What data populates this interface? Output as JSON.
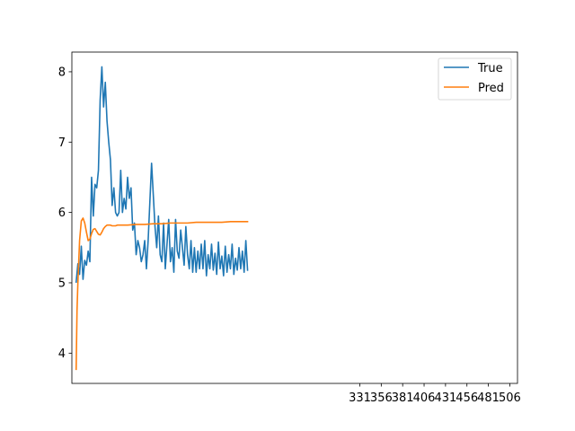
{
  "chart_data": {
    "type": "line",
    "title": "",
    "xlabel": "",
    "ylabel": "",
    "xlim": [
      -5,
      515
    ],
    "ylim": [
      3.57,
      8.28
    ],
    "grid": false,
    "legend_position": "top-right",
    "x_ticks": [
      331,
      356,
      381,
      406,
      431,
      456,
      481,
      506
    ],
    "x_tick_labels": [
      "331",
      "356",
      "381",
      "406",
      "431",
      "456",
      "481",
      "506"
    ],
    "y_ticks": [
      4,
      5,
      6,
      7,
      8
    ],
    "y_tick_labels": [
      "4",
      "5",
      "6",
      "7",
      "8"
    ],
    "series": [
      {
        "name": "True",
        "color": "#1f77b4",
        "x": [
          0,
          2,
          4,
          6,
          8,
          10,
          12,
          14,
          16,
          18,
          20,
          22,
          24,
          26,
          28,
          30,
          32,
          34,
          36,
          38,
          40,
          42,
          44,
          46,
          48,
          50,
          52,
          54,
          56,
          58,
          60,
          62,
          64,
          66,
          68,
          70,
          72,
          74,
          76,
          78,
          80,
          82,
          84,
          86,
          88,
          90,
          92,
          94,
          96,
          98,
          100,
          102,
          104,
          106,
          108,
          110,
          112,
          114,
          116,
          118,
          120,
          122,
          124,
          126,
          128,
          130,
          132,
          134,
          136,
          138,
          140,
          142,
          144,
          146,
          148,
          150,
          152,
          154,
          156,
          158,
          160,
          162,
          164,
          166,
          168,
          170,
          172,
          174,
          176,
          178,
          180,
          182,
          184,
          186,
          188,
          190,
          192,
          194,
          196,
          198,
          200
        ],
        "values": [
          5.01,
          5.27,
          5.12,
          5.52,
          5.05,
          5.32,
          5.25,
          5.45,
          5.3,
          6.5,
          5.95,
          6.4,
          6.35,
          6.6,
          7.6,
          8.07,
          7.5,
          7.85,
          7.3,
          7.0,
          6.75,
          6.1,
          6.35,
          6.0,
          5.95,
          6.0,
          6.6,
          6.0,
          6.2,
          6.05,
          6.5,
          6.2,
          6.35,
          5.75,
          5.85,
          5.4,
          5.6,
          5.5,
          5.3,
          5.4,
          5.6,
          5.2,
          5.6,
          6.15,
          6.7,
          6.25,
          5.8,
          5.5,
          5.95,
          5.4,
          5.3,
          5.85,
          5.2,
          5.55,
          5.9,
          5.3,
          5.5,
          5.15,
          5.9,
          5.45,
          5.35,
          5.75,
          5.5,
          5.25,
          5.8,
          5.4,
          5.2,
          5.6,
          5.15,
          5.5,
          5.15,
          5.45,
          5.2,
          5.55,
          5.2,
          5.6,
          5.1,
          5.4,
          5.2,
          5.55,
          5.18,
          5.42,
          5.12,
          5.58,
          5.2,
          5.38,
          5.1,
          5.52,
          5.15,
          5.4,
          5.2,
          5.55,
          5.12,
          5.35,
          5.18,
          5.5,
          5.2,
          5.45,
          5.15,
          5.6,
          5.18
        ]
      },
      {
        "name": "Pred",
        "color": "#ff7f0e",
        "x": [
          0,
          1,
          2,
          3,
          4,
          6,
          8,
          10,
          12,
          14,
          16,
          18,
          20,
          22,
          24,
          26,
          28,
          30,
          32,
          34,
          36,
          38,
          40,
          42,
          44,
          46,
          48,
          50,
          52,
          54,
          56,
          58,
          60,
          70,
          80,
          90,
          100,
          110,
          120,
          130,
          140,
          150,
          160,
          170,
          180,
          190,
          200
        ],
        "values": [
          3.77,
          4.6,
          5.0,
          5.3,
          5.6,
          5.88,
          5.92,
          5.85,
          5.72,
          5.6,
          5.62,
          5.7,
          5.76,
          5.77,
          5.73,
          5.69,
          5.68,
          5.72,
          5.77,
          5.8,
          5.82,
          5.82,
          5.82,
          5.81,
          5.81,
          5.81,
          5.82,
          5.82,
          5.82,
          5.82,
          5.82,
          5.82,
          5.82,
          5.83,
          5.83,
          5.84,
          5.84,
          5.85,
          5.85,
          5.85,
          5.86,
          5.86,
          5.86,
          5.86,
          5.87,
          5.87,
          5.87
        ]
      }
    ]
  }
}
